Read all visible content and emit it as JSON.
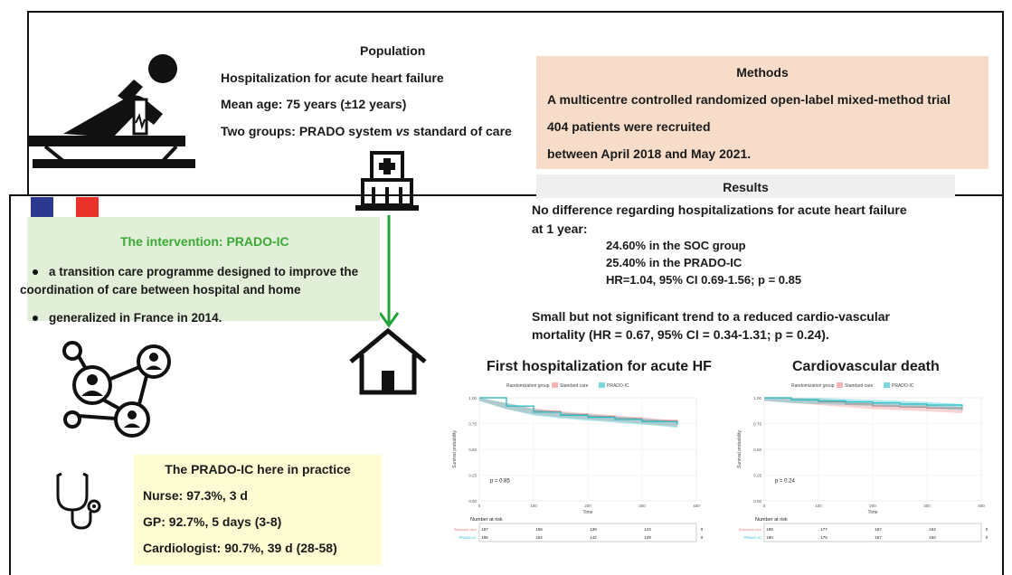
{
  "population": {
    "title": "Population",
    "lines": [
      "Hospitalization for acute heart failure",
      "Mean age: 75 years (±12 years)"
    ],
    "groups_prefix": "Two groups: PRADO system ",
    "groups_vs": "vs",
    "groups_suffix": " standard of care"
  },
  "methods": {
    "title": "Methods",
    "lines": [
      "A multicentre controlled randomized open-label mixed-method trial",
      "404 patients were recruited",
      "between April 2018 and May 2021."
    ]
  },
  "results": {
    "title": "Results",
    "lines": [
      "No difference regarding hospitalizations for acute heart failure",
      "at 1 year:",
      "24.60% in the SOC group",
      "25.40% in the PRADO-IC",
      "HR=1.04, 95% CI 0.69-1.56; p = 0.85",
      "Small but not significant trend to a reduced cardio-vascular",
      "mortality (HR = 0.67, 95% CI = 0.34-1.31; p = 0.24)."
    ]
  },
  "intervention": {
    "title": "The intervention: PRADO-IC",
    "bullet1_line1": "a transition care programme designed to improve the",
    "bullet1_line2": "coordination of care between hospital and home",
    "bullet2": "generalized in France in 2014."
  },
  "practice": {
    "title": "The PRADO-IC here in practice",
    "lines": [
      "Nurse: 97.3%, 3 d",
      "GP: 92.7%, 5 days (3-8)",
      "Cardiologist: 90.7%, 39 d (28-58)"
    ]
  },
  "icons": [
    "patient-bed-icon",
    "hospital-icon",
    "house-icon",
    "network-icon",
    "stethoscope-icon",
    "france-flag-icon",
    "green-arrow-icon"
  ],
  "colors": {
    "green_title": "#3aaa35",
    "soc_color": "#f08080",
    "prado_color": "#20c0c8",
    "arrow": "#22a33a"
  },
  "chart_data": [
    {
      "type": "line",
      "title": "First hospitalization for acute HF",
      "legend_title": "Randomization group",
      "series": [
        {
          "name": "Standard care",
          "x": [
            0,
            50,
            100,
            150,
            200,
            250,
            300,
            365
          ],
          "values": [
            1.0,
            0.92,
            0.87,
            0.84,
            0.82,
            0.8,
            0.78,
            0.75
          ]
        },
        {
          "name": "PRADO-IC",
          "x": [
            0,
            50,
            100,
            150,
            200,
            250,
            300,
            365
          ],
          "values": [
            1.0,
            0.92,
            0.86,
            0.83,
            0.81,
            0.79,
            0.77,
            0.74
          ]
        }
      ],
      "xlabel": "Time",
      "ylabel": "Survival probability",
      "xticks": [
        "0",
        "100",
        "200",
        "300",
        "400"
      ],
      "yticks": [
        "0.00",
        "0.25",
        "0.50",
        "0.75",
        "1.00"
      ],
      "xlim": [
        0,
        400
      ],
      "ylim": [
        0,
        1
      ],
      "annotation": "p = 0.85",
      "risk_table": {
        "title": "Number at risk",
        "rows": [
          {
            "name": "Standard care",
            "values": [
              "187",
              "158",
              "139",
              "123",
              "0"
            ]
          },
          {
            "name": "PRADO-IC",
            "values": [
              "185",
              "154",
              "142",
              "129",
              "0"
            ]
          }
        ]
      },
      "grid": true,
      "legend_position": "top"
    },
    {
      "type": "line",
      "title": "Cardiovascular death",
      "legend_title": "Randomization group",
      "series": [
        {
          "name": "Standard care",
          "x": [
            0,
            50,
            100,
            150,
            200,
            250,
            300,
            365
          ],
          "values": [
            1.0,
            0.98,
            0.96,
            0.94,
            0.92,
            0.91,
            0.9,
            0.88
          ]
        },
        {
          "name": "PRADO-IC",
          "x": [
            0,
            50,
            100,
            150,
            200,
            250,
            300,
            365
          ],
          "values": [
            1.0,
            0.98,
            0.97,
            0.96,
            0.95,
            0.94,
            0.93,
            0.91
          ]
        }
      ],
      "xlabel": "Time",
      "ylabel": "Survival probability",
      "xticks": [
        "0",
        "100",
        "200",
        "300",
        "400"
      ],
      "yticks": [
        "0.00",
        "0.25",
        "0.50",
        "0.75",
        "1.00"
      ],
      "xlim": [
        0,
        400
      ],
      "ylim": [
        0,
        1
      ],
      "annotation": "p = 0.24",
      "risk_table": {
        "title": "Number at risk",
        "rows": [
          {
            "name": "Standard care",
            "values": [
              "188",
              "177",
              "167",
              "162",
              "0"
            ]
          },
          {
            "name": "PRADO-IC",
            "values": [
              "190",
              "175",
              "167",
              "160",
              "0"
            ]
          }
        ]
      },
      "grid": true,
      "legend_position": "top"
    }
  ]
}
